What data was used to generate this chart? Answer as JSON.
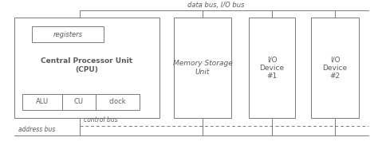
{
  "bg_color": "#ffffff",
  "line_color": "#7a7a7a",
  "text_color": "#5a5a5a",
  "data_bus_label": "data bus, I/O bus",
  "control_bus_label": "control bus",
  "address_bus_label": "address bus",
  "cpu_label": "Central Processor Unit\n(CPU)",
  "registers_label": "registers",
  "alu_label": "ALU",
  "cu_label": "CU",
  "clock_label": "clock",
  "memory_label": "Memory Storage\nUnit",
  "io1_label": "I/O\nDevice\n#1",
  "io2_label": "I/O\nDevice\n#2",
  "figsize": [
    4.74,
    1.97
  ],
  "dpi": 100
}
